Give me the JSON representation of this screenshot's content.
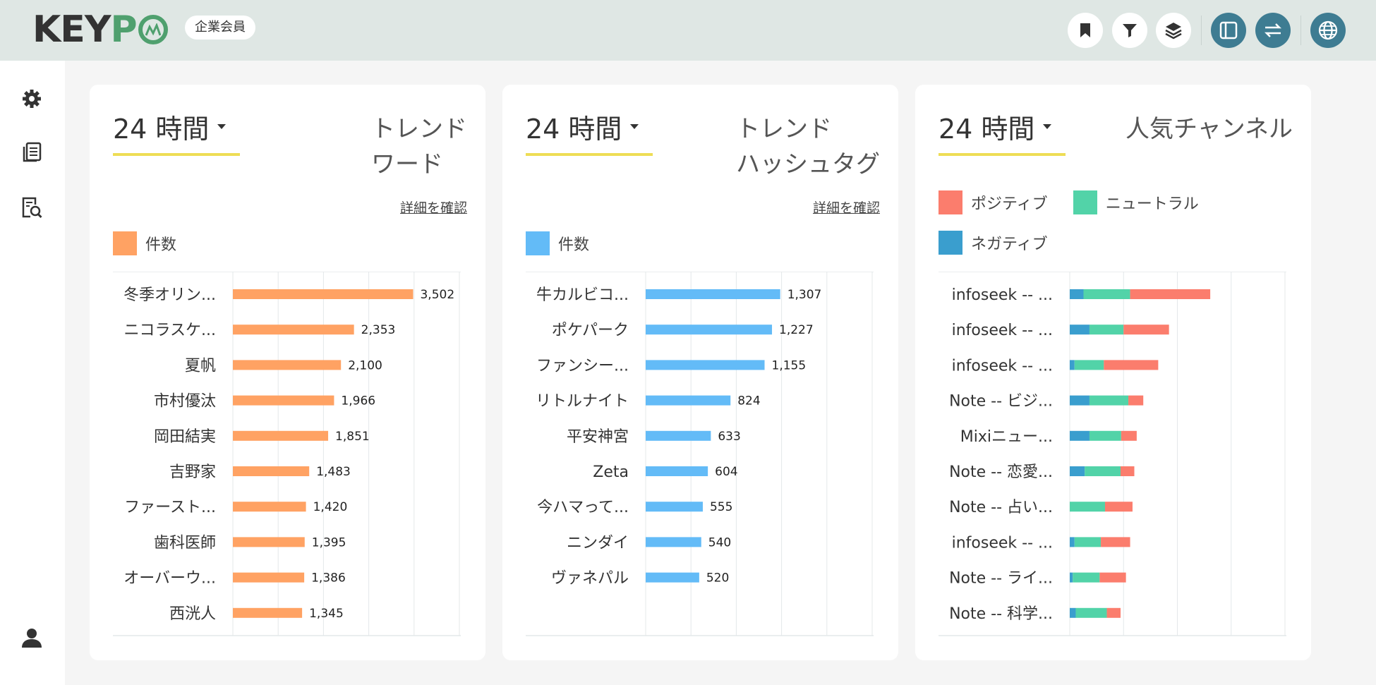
{
  "app": {
    "logo_text": "KEYPO",
    "member_badge": "企業会員"
  },
  "header_icons": [
    {
      "name": "bookmark-icon"
    },
    {
      "name": "filter-icon"
    },
    {
      "name": "layers-icon"
    },
    {
      "name": "sidebar-toggle-icon"
    },
    {
      "name": "swap-icon"
    },
    {
      "name": "globe-icon"
    }
  ],
  "sidebar": {
    "items": [
      {
        "name": "settings-icon"
      },
      {
        "name": "documents-icon"
      },
      {
        "name": "report-search-icon"
      },
      {
        "name": "user-icon"
      }
    ]
  },
  "colors": {
    "orange": "#ffa263",
    "blue": "#63bbf7",
    "positive": "#fb7d6d",
    "neutral": "#52d3a8",
    "negative": "#3a9ece",
    "period_underline": "#eedd55"
  },
  "panels": [
    {
      "period_label": "24 時間",
      "title": "トレンド\nワード",
      "detail_link": "詳細を確認",
      "legend": [
        {
          "label": "件数",
          "color": "#ffa263"
        }
      ]
    },
    {
      "period_label": "24 時間",
      "title": "トレンド\nハッシュタグ",
      "detail_link": "詳細を確認",
      "legend": [
        {
          "label": "件数",
          "color": "#63bbf7"
        }
      ]
    },
    {
      "period_label": "24 時間",
      "title": "人気チャンネル",
      "legend": [
        {
          "label": "ポジティブ",
          "color": "#fb7d6d"
        },
        {
          "label": "ニュートラル",
          "color": "#52d3a8"
        },
        {
          "label": "ネガティブ",
          "color": "#3a9ece"
        }
      ]
    }
  ],
  "chart_data": [
    {
      "type": "bar",
      "orientation": "horizontal",
      "categories": [
        "冬季オリン...",
        "ニコラスケ...",
        "夏帆",
        "市村優汰",
        "岡田結実",
        "吉野家",
        "ファースト...",
        "歯科医師",
        "オーバーウ...",
        "西洸人"
      ],
      "series": [
        {
          "name": "件数",
          "values": [
            3502,
            2353,
            2100,
            1966,
            1851,
            1483,
            1420,
            1395,
            1386,
            1345
          ]
        }
      ],
      "value_labels": [
        "3,502",
        "2,353",
        "2,100",
        "1,966",
        "1,851",
        "1,483",
        "1,420",
        "1,395",
        "1,386",
        "1,345"
      ],
      "xlim": [
        0,
        4400
      ],
      "grid": true
    },
    {
      "type": "bar",
      "orientation": "horizontal",
      "categories": [
        "牛カルビコ...",
        "ポケパーク",
        "ファンシー...",
        "リトルナイト",
        "平安神宮",
        "Zeta",
        "今ハマって...",
        "ニンダイ",
        "ヴァネパル"
      ],
      "series": [
        {
          "name": "件数",
          "values": [
            1307,
            1227,
            1155,
            824,
            633,
            604,
            555,
            540,
            520
          ]
        }
      ],
      "value_labels": [
        "1,307",
        "1,227",
        "1,155",
        "824",
        "633",
        "604",
        "555",
        "540",
        "520"
      ],
      "xlim": [
        0,
        2200
      ],
      "grid": true
    },
    {
      "type": "bar",
      "orientation": "horizontal",
      "stacked": true,
      "categories": [
        "infoseek -- ...",
        "infoseek -- ...",
        "infoseek -- ...",
        "Note -- ビジ...",
        "Mixiニュー...",
        "Note -- 恋愛...",
        "Note -- 占い...",
        "infoseek -- ...",
        "Note -- ライ...",
        "Note -- 科学..."
      ],
      "series": [
        {
          "name": "ネガティブ",
          "values": [
            23,
            33,
            8,
            33,
            33,
            25,
            0,
            8,
            5,
            10
          ]
        },
        {
          "name": "ニュートラル",
          "values": [
            78,
            57,
            49,
            65,
            53,
            60,
            59,
            44,
            45,
            52
          ]
        },
        {
          "name": "ポジティブ",
          "values": [
            134,
            76,
            91,
            25,
            26,
            23,
            46,
            49,
            44,
            23
          ]
        }
      ],
      "xlim": [
        0,
        360
      ],
      "grid": true
    }
  ]
}
